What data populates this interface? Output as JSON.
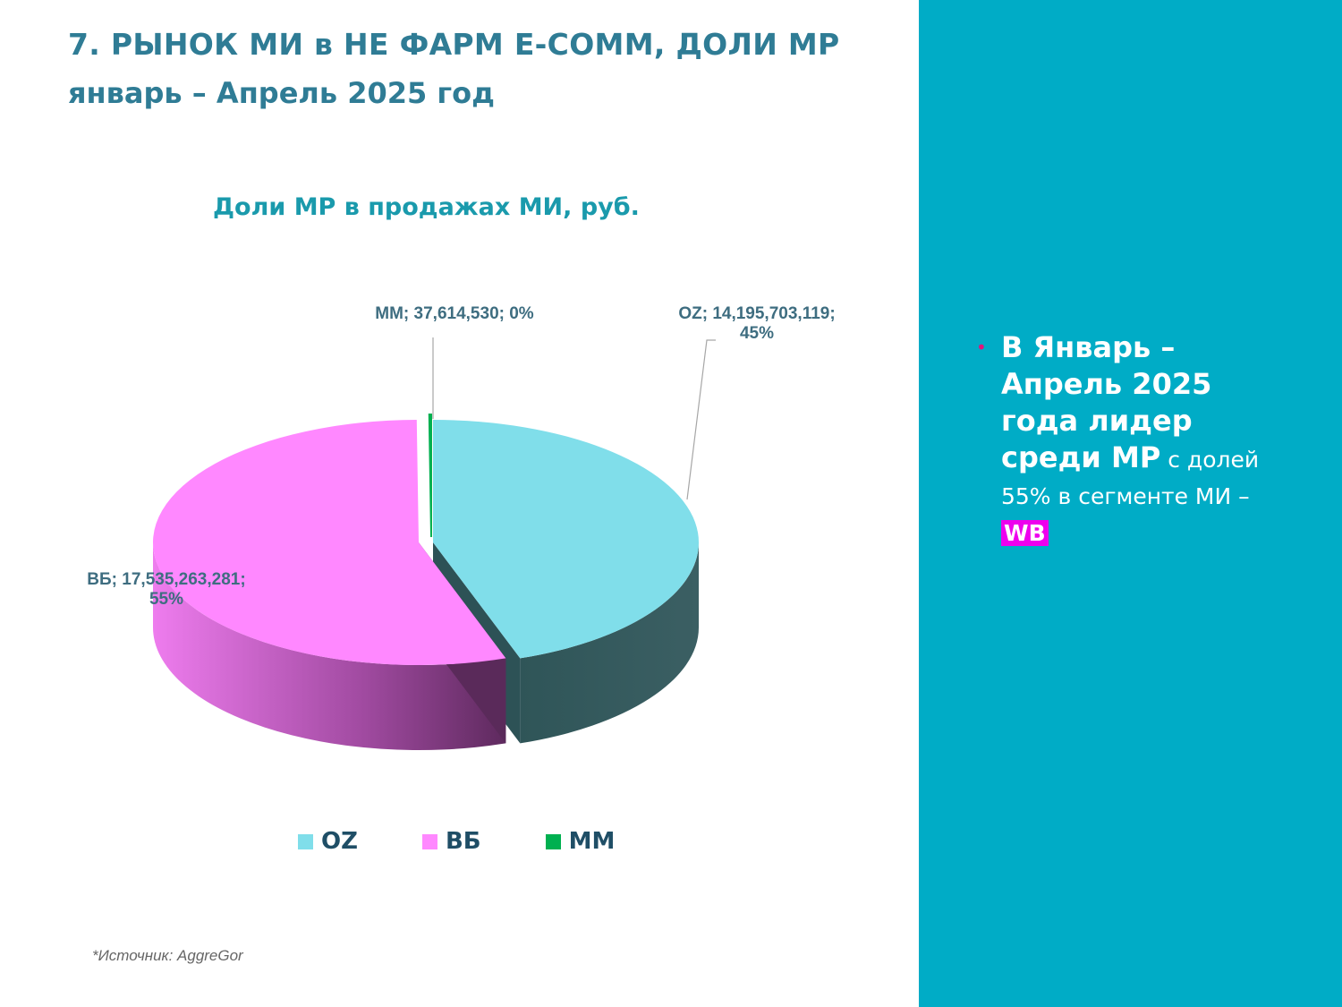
{
  "header": {
    "title": "7. РЫНОК МИ в НЕ ФАРМ E-COMM, ДОЛИ МР",
    "subtitle": "январь – Апрель 2025 год"
  },
  "chart_data": {
    "type": "pie",
    "title": "Доли МР в продажах МИ, руб.",
    "categories": [
      "OZ",
      "ВБ",
      "ММ"
    ],
    "values": [
      14195703119,
      17535263281,
      37614530
    ],
    "percentages": [
      45,
      55,
      0
    ],
    "colors": [
      "#80deea",
      "#ff88ff",
      "#00b050"
    ],
    "data_labels": [
      [
        "OZ; 14,195,703,119;",
        "45%"
      ],
      [
        "ВБ; 17,535,263,281;",
        "55%"
      ],
      [
        "ММ; 37,614,530; 0%"
      ]
    ],
    "legend": [
      "OZ",
      "ВБ",
      "ММ"
    ],
    "legend_position": "bottom",
    "style": "3d-exploded"
  },
  "sidebar": {
    "bullet_strong": "В Январь – Апрель 2025 года лидер среди МР",
    "bullet_normal": " с долей 55% в сегменте МИ – ",
    "highlight": "WB",
    "background_color": "#00acc6",
    "highlight_color": "#ee00ee"
  },
  "footer": {
    "source": "*Источник: AggreGor"
  }
}
